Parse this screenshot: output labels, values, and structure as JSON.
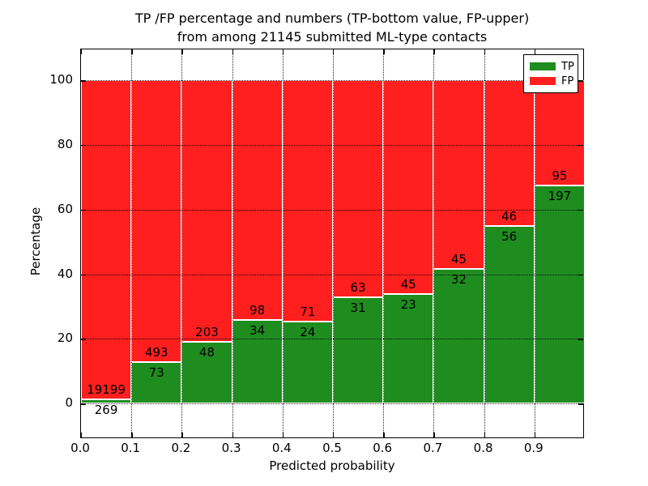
{
  "title": {
    "line1": "TP /FP percentage and numbers (TP-bottom value, FP-upper)",
    "line2": "from among 21145 submitted ML-type contacts"
  },
  "colors": {
    "tp_green": "#1f8c1f",
    "fp_red": "#ff1f1f",
    "grid": "#000000",
    "bar_edge": "#ffffff"
  },
  "chart_data": {
    "type": "bar",
    "stacked": true,
    "title": "TP /FP percentage and numbers (TP-bottom value, FP-upper) from among 21145 submitted ML-type contacts",
    "xlabel": "Predicted probability",
    "ylabel": "Percentage",
    "total_contacts": 21145,
    "xlim": [
      0.0,
      1.0
    ],
    "ylim": [
      -11.0,
      109.6
    ],
    "x_tick_labels": [
      "0.0",
      "0.1",
      "0.2",
      "0.3",
      "0.4",
      "0.5",
      "0.6",
      "0.7",
      "0.8",
      "0.9"
    ],
    "y_ticks": [
      0,
      20,
      40,
      60,
      80,
      100
    ],
    "grid": "dotted",
    "categories": [
      "0.0",
      "0.1",
      "0.2",
      "0.3",
      "0.4",
      "0.5",
      "0.6",
      "0.7",
      "0.8",
      "0.9"
    ],
    "series": [
      {
        "name": "TP",
        "color": "#1f8c1f",
        "values": [
          269,
          73,
          48,
          34,
          24,
          31,
          23,
          32,
          56,
          197
        ]
      },
      {
        "name": "FP",
        "color": "#ff1f1f",
        "values": [
          19199,
          493,
          203,
          98,
          71,
          63,
          45,
          45,
          46,
          95
        ]
      }
    ],
    "bins": [
      {
        "range": [
          0.0,
          0.1
        ],
        "tp": 269,
        "fp": 19199,
        "tp_pct": 1.38
      },
      {
        "range": [
          0.1,
          0.2
        ],
        "tp": 73,
        "fp": 493,
        "tp_pct": 12.9
      },
      {
        "range": [
          0.2,
          0.3
        ],
        "tp": 48,
        "fp": 203,
        "tp_pct": 19.12
      },
      {
        "range": [
          0.3,
          0.4
        ],
        "tp": 34,
        "fp": 98,
        "tp_pct": 25.76
      },
      {
        "range": [
          0.4,
          0.5
        ],
        "tp": 24,
        "fp": 71,
        "tp_pct": 25.26
      },
      {
        "range": [
          0.5,
          0.6
        ],
        "tp": 31,
        "fp": 63,
        "tp_pct": 32.98
      },
      {
        "range": [
          0.6,
          0.7
        ],
        "tp": 23,
        "fp": 45,
        "tp_pct": 33.82
      },
      {
        "range": [
          0.7,
          0.8
        ],
        "tp": 32,
        "fp": 45,
        "tp_pct": 41.56
      },
      {
        "range": [
          0.8,
          0.9
        ],
        "tp": 56,
        "fp": 46,
        "tp_pct": 54.9
      },
      {
        "range": [
          0.9,
          1.0
        ],
        "tp": 197,
        "fp": 95,
        "tp_pct": 67.47
      }
    ],
    "legend": {
      "position": "upper right",
      "entries": [
        {
          "label": "TP",
          "color": "#1f8c1f"
        },
        {
          "label": "FP",
          "color": "#ff1f1f"
        }
      ]
    }
  }
}
